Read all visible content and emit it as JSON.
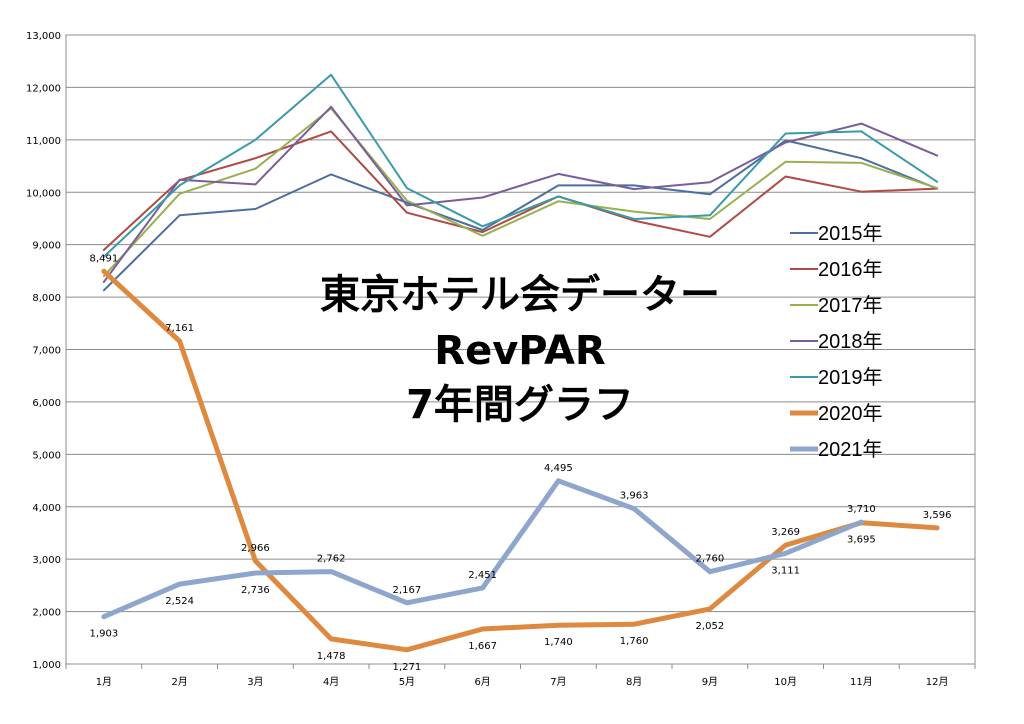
{
  "chart_data": {
    "type": "line",
    "title_lines": [
      "東京ホテル会データー",
      "RevPAR",
      "7年間グラフ"
    ],
    "categories": [
      "1月",
      "2月",
      "3月",
      "4月",
      "5月",
      "6月",
      "7月",
      "8月",
      "9月",
      "10月",
      "11月",
      "12月"
    ],
    "ylim": [
      1000,
      13000
    ],
    "y_ticks": [
      1000,
      2000,
      3000,
      4000,
      5000,
      6000,
      7000,
      8000,
      9000,
      10000,
      11000,
      12000,
      13000
    ],
    "y_tick_labels": [
      "1,000",
      "2,000",
      "3,000",
      "4,000",
      "5,000",
      "6,000",
      "7,000",
      "8,000",
      "9,000",
      "10,000",
      "11,000",
      "12,000",
      "13,000"
    ],
    "grid": true,
    "legend_position": "right",
    "series": [
      {
        "name": "2015年",
        "color": "#4a6fa0",
        "values": [
          8130,
          9560,
          9680,
          10340,
          9800,
          9280,
          10130,
          10130,
          9960,
          10990,
          10650,
          10070
        ]
      },
      {
        "name": "2016年",
        "color": "#b04a45",
        "values": [
          8900,
          10230,
          10650,
          11160,
          9610,
          9240,
          9920,
          9460,
          9150,
          10300,
          10010,
          10070
        ]
      },
      {
        "name": "2017年",
        "color": "#98b050",
        "values": [
          8400,
          9970,
          10450,
          11600,
          9840,
          9170,
          9830,
          9630,
          9490,
          10580,
          10560,
          10080
        ]
      },
      {
        "name": "2018年",
        "color": "#7a5d9a",
        "values": [
          8290,
          10240,
          10150,
          11630,
          9750,
          9900,
          10350,
          10060,
          10190,
          10950,
          11310,
          10700
        ]
      },
      {
        "name": "2019年",
        "color": "#3a9aaa",
        "values": [
          8770,
          10130,
          11000,
          12240,
          10080,
          9350,
          9920,
          9490,
          9560,
          11120,
          11160,
          10200
        ]
      },
      {
        "name": "2020年",
        "color": "#dd8a40",
        "values": [
          8491,
          7161,
          2966,
          1478,
          1271,
          1667,
          1740,
          1760,
          2052,
          3269,
          3695,
          3596
        ],
        "labels": [
          "8,491",
          "7,161",
          "2,966",
          "1,478",
          "1,271",
          "1,667",
          "1,740",
          "1,760",
          "2,052",
          "3,269",
          "3,695",
          "3,596"
        ]
      },
      {
        "name": "2021年",
        "color": "#8ea5cc",
        "values": [
          1903,
          2524,
          2736,
          2762,
          2167,
          2451,
          4495,
          3963,
          2760,
          3111,
          3710,
          null
        ],
        "labels": [
          "1,903",
          "2,524",
          "2,736",
          "2,762",
          "2,167",
          "2,451",
          "4,495",
          "3,963",
          "2,760",
          "3,111",
          "3,710",
          null
        ]
      }
    ]
  }
}
